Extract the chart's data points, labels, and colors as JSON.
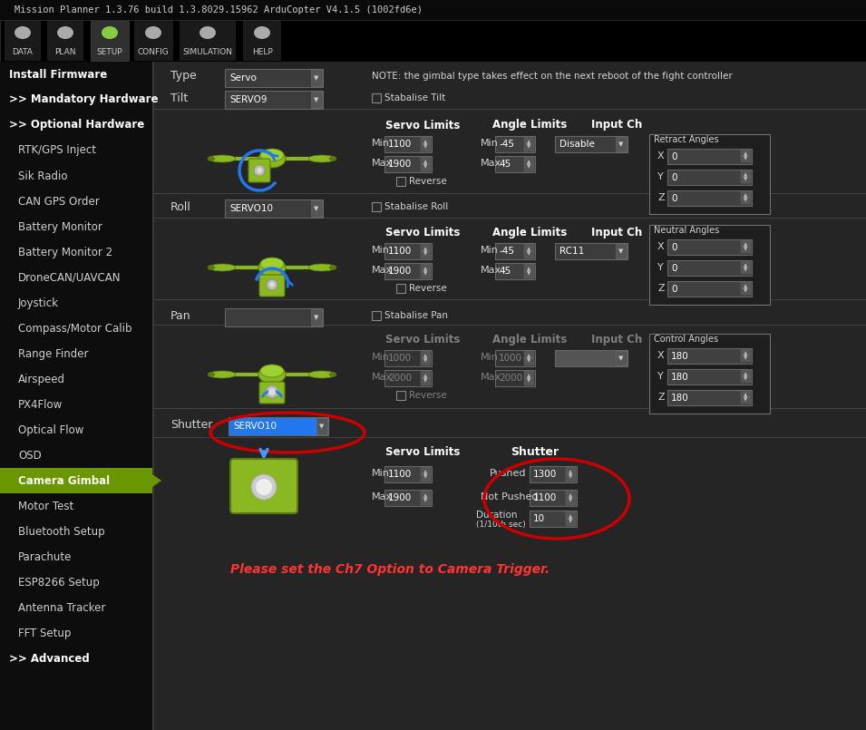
{
  "title_bar": "Mission Planner 1.3.76 build 1.3.8029.15962 ArduCopter V4.1.5 (1002fd6e)",
  "toolbar_items": [
    "DATA",
    "PLAN",
    "SETUP",
    "CONFIG",
    "SIMULATION",
    "HELP"
  ],
  "sidebar_items": [
    "Install Firmware",
    ">> Mandatory Hardware",
    ">> Optional Hardware",
    "  RTK/GPS Inject",
    "  Sik Radio",
    "  CAN GPS Order",
    "  Battery Monitor",
    "  Battery Monitor 2",
    "  DroneCAN/UAVCAN",
    "  Joystick",
    "  Compass/Motor Calib",
    "  Range Finder",
    "  Airspeed",
    "  PX4Flow",
    "  Optical Flow",
    "  OSD",
    "  Camera Gimbal",
    "  Motor Test",
    "  Bluetooth Setup",
    "  Parachute",
    "  ESP8266 Setup",
    "  Antenna Tracker",
    "  FFT Setup",
    ">> Advanced"
  ],
  "active_sidebar": "  Camera Gimbal",
  "bg_color": "#1c1c1c",
  "active_bg": "#6a9600",
  "note_text": "NOTE: the gimbal type takes effect on the next reboot of the fight controller",
  "type_value": "Servo",
  "tilt_value": "SERVO9",
  "roll_value": "SERVO10",
  "tilt_servo_min": "1100",
  "tilt_servo_max": "1900",
  "tilt_angle_min": "-45",
  "tilt_angle_max": "45",
  "tilt_input_ch": "Disable",
  "roll_servo_min": "1100",
  "roll_servo_max": "1900",
  "roll_angle_min": "-45",
  "roll_angle_max": "45",
  "roll_input_ch": "RC11",
  "pan_servo_min": "1000",
  "pan_servo_max": "2000",
  "pan_angle_min": "1000",
  "pan_angle_max": "2000",
  "shutter_value": "SERVO10",
  "shutter_servo_min": "1100",
  "shutter_servo_max": "1900",
  "shutter_pushed": "1300",
  "shutter_not_pushed": "1100",
  "shutter_duration": "10",
  "retract_x": "0",
  "retract_y": "0",
  "retract_z": "0",
  "neutral_x": "0",
  "neutral_y": "0",
  "neutral_z": "0",
  "control_x": "180",
  "control_y": "180",
  "control_z": "180",
  "notice_text": "Please set the Ch7 Option to Camera Trigger.",
  "notice_color": "#ff3333",
  "widget_bg": "#3c3c3c",
  "widget_border": "#666666",
  "label_color": "#d4d4d4",
  "header_color": "#ffffff",
  "dim_color": "#808080",
  "red_circle": "#cc0000",
  "blue_arrow": "#4499ff",
  "green_copter": "#8ab820",
  "green_dark": "#5a7a10",
  "blue_arc": "#2277ee",
  "content_bg": "#252525"
}
